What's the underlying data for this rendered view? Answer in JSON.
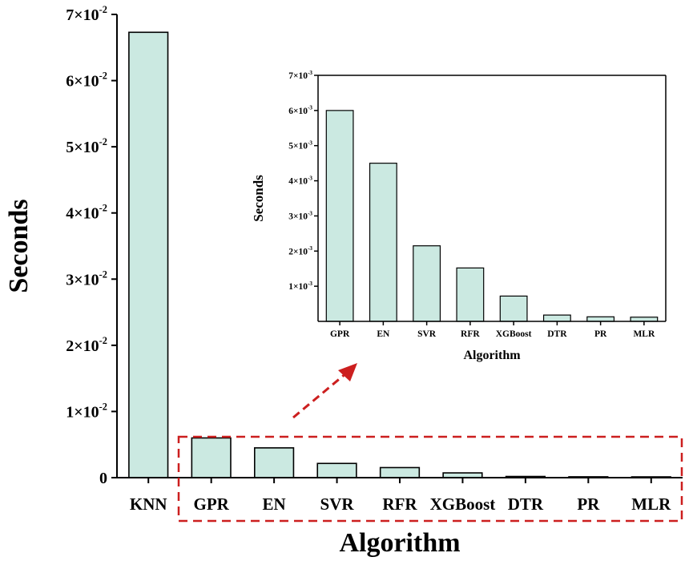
{
  "chart_data": [
    {
      "type": "bar",
      "title": "",
      "xlabel": "Algorithm",
      "ylabel": "Seconds",
      "ylim": [
        0,
        0.07
      ],
      "yticks": [
        {
          "value": 0,
          "label": "0"
        },
        {
          "value": 0.01,
          "label": "1×10",
          "exp": "-2"
        },
        {
          "value": 0.02,
          "label": "2×10",
          "exp": "-2"
        },
        {
          "value": 0.03,
          "label": "3×10",
          "exp": "-2"
        },
        {
          "value": 0.04,
          "label": "4×10",
          "exp": "-2"
        },
        {
          "value": 0.05,
          "label": "5×10",
          "exp": "-2"
        },
        {
          "value": 0.06,
          "label": "6×10",
          "exp": "-2"
        },
        {
          "value": 0.07,
          "label": "7×10",
          "exp": "-2"
        }
      ],
      "categories": [
        "KNN",
        "GPR",
        "EN",
        "SVR",
        "RFR",
        "XGBoost",
        "DTR",
        "PR",
        "MLR"
      ],
      "values": [
        0.0673,
        0.006,
        0.0045,
        0.00215,
        0.00152,
        0.00072,
        0.00018,
        0.00013,
        0.00012
      ],
      "bar_color": "#cbe9e1"
    },
    {
      "type": "bar",
      "title": "",
      "xlabel": "Algorithm",
      "ylabel": "Seconds",
      "ylim": [
        0,
        0.007
      ],
      "yticks": [
        {
          "value": 0.001,
          "label": "1×10",
          "exp": "-3"
        },
        {
          "value": 0.002,
          "label": "2×10",
          "exp": "-3"
        },
        {
          "value": 0.003,
          "label": "3×10",
          "exp": "-3"
        },
        {
          "value": 0.004,
          "label": "4×10",
          "exp": "-3"
        },
        {
          "value": 0.005,
          "label": "5×10",
          "exp": "-3"
        },
        {
          "value": 0.006,
          "label": "6×10",
          "exp": "-3"
        },
        {
          "value": 0.007,
          "label": "7×10",
          "exp": "-3"
        }
      ],
      "categories": [
        "GPR",
        "EN",
        "SVR",
        "RFR",
        "XGBoost",
        "DTR",
        "PR",
        "MLR"
      ],
      "values": [
        0.006,
        0.0045,
        0.00215,
        0.00152,
        0.00072,
        0.00018,
        0.00013,
        0.00012
      ],
      "bar_color": "#cbe9e1"
    }
  ],
  "colors": {
    "highlight": "#cc1f1f",
    "bar_fill": "#cbe9e1",
    "axis": "#000000"
  }
}
